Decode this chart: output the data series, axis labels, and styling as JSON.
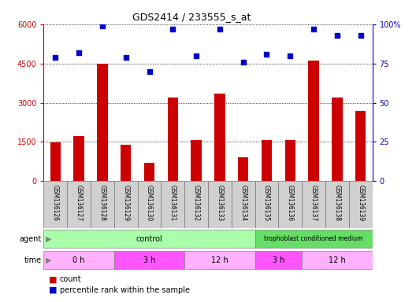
{
  "title": "GDS2414 / 233555_s_at",
  "samples": [
    "GSM136126",
    "GSM136127",
    "GSM136128",
    "GSM136129",
    "GSM136130",
    "GSM136131",
    "GSM136132",
    "GSM136133",
    "GSM136134",
    "GSM136135",
    "GSM136136",
    "GSM136137",
    "GSM136138",
    "GSM136139"
  ],
  "counts": [
    1480,
    1730,
    4500,
    1380,
    700,
    3200,
    1560,
    3350,
    900,
    1560,
    1560,
    4620,
    3200,
    2700
  ],
  "percentiles": [
    79,
    82,
    99,
    79,
    70,
    97,
    80,
    97,
    76,
    81,
    80,
    97,
    93,
    93
  ],
  "ylim_left": [
    0,
    6000
  ],
  "ylim_right": [
    0,
    100
  ],
  "yticks_left": [
    0,
    1500,
    3000,
    4500,
    6000
  ],
  "yticks_right": [
    0,
    25,
    50,
    75,
    100
  ],
  "bar_color": "#CC0000",
  "dot_color": "#0000CC",
  "axis_left_color": "#CC0000",
  "axis_right_color": "#0000CC",
  "grid_color": "#000000",
  "title_color": "#000000",
  "label_bg_color": "#D0D0D0",
  "label_border_color": "#808080",
  "control_color": "#AAFFAA",
  "trophoblast_color": "#66DD66",
  "time_light_color": "#FFB0FF",
  "time_dark_color": "#FF55FF",
  "time_groups": [
    {
      "label": "0 h",
      "start": 0,
      "end": 3,
      "dark": false
    },
    {
      "label": "3 h",
      "start": 3,
      "end": 6,
      "dark": true
    },
    {
      "label": "12 h",
      "start": 6,
      "end": 9,
      "dark": false
    },
    {
      "label": "3 h",
      "start": 9,
      "end": 11,
      "dark": true
    },
    {
      "label": "12 h",
      "start": 11,
      "end": 14,
      "dark": false
    }
  ],
  "agent_groups": [
    {
      "label": "control",
      "start": 0,
      "end": 9
    },
    {
      "label": "trophoblast conditioned medium",
      "start": 9,
      "end": 14
    }
  ]
}
